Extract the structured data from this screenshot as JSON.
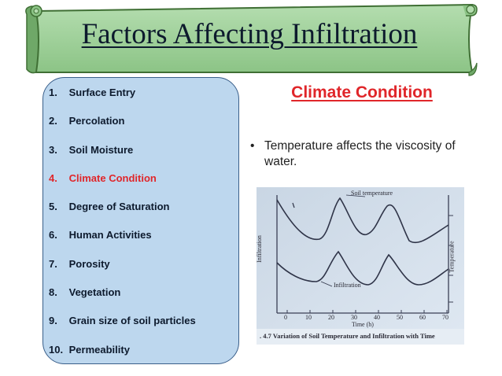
{
  "banner": {
    "title": "Factors Affecting Infiltration",
    "fill_color": "#9ed09a",
    "border_color": "#3f6f34"
  },
  "sidebar": {
    "panel_color": "#bdd7ee",
    "items": [
      {
        "num": "1.",
        "label": "Surface Entry",
        "active": false
      },
      {
        "num": "2.",
        "label": "Percolation",
        "active": false
      },
      {
        "num": "3.",
        "label": "Soil Moisture",
        "active": false
      },
      {
        "num": "4.",
        "label": "Climate Condition",
        "active": true
      },
      {
        "num": "5.",
        "label": "Degree of Saturation",
        "active": false
      },
      {
        "num": "6.",
        "label": "Human Activities",
        "active": false
      },
      {
        "num": "7.",
        "label": "Porosity",
        "active": false
      },
      {
        "num": "8.",
        "label": "Vegetation",
        "active": false
      },
      {
        "num": "9.",
        "label": "Grain size of soil particles",
        "active": false
      },
      {
        "num": "10.",
        "label": "Permeability",
        "active": false
      }
    ]
  },
  "main": {
    "section_title": "Climate Condition",
    "bullet_char": "•",
    "bullet_text": "Temperature affects the viscosity of water.",
    "accent_color": "#e0262a"
  },
  "figure": {
    "soil_temperature_label": "Soil temperature",
    "infiltration_label": "Infiltration",
    "y_left_label": "Infiltration",
    "y_right_label": "Temperature",
    "x_label": "Time (h)",
    "x_ticks": [
      "0",
      "10",
      "20",
      "30",
      "40",
      "50",
      "60",
      "70"
    ],
    "caption": ". 4.7  Variation of Soil Temperature and Infiltration with Time"
  }
}
